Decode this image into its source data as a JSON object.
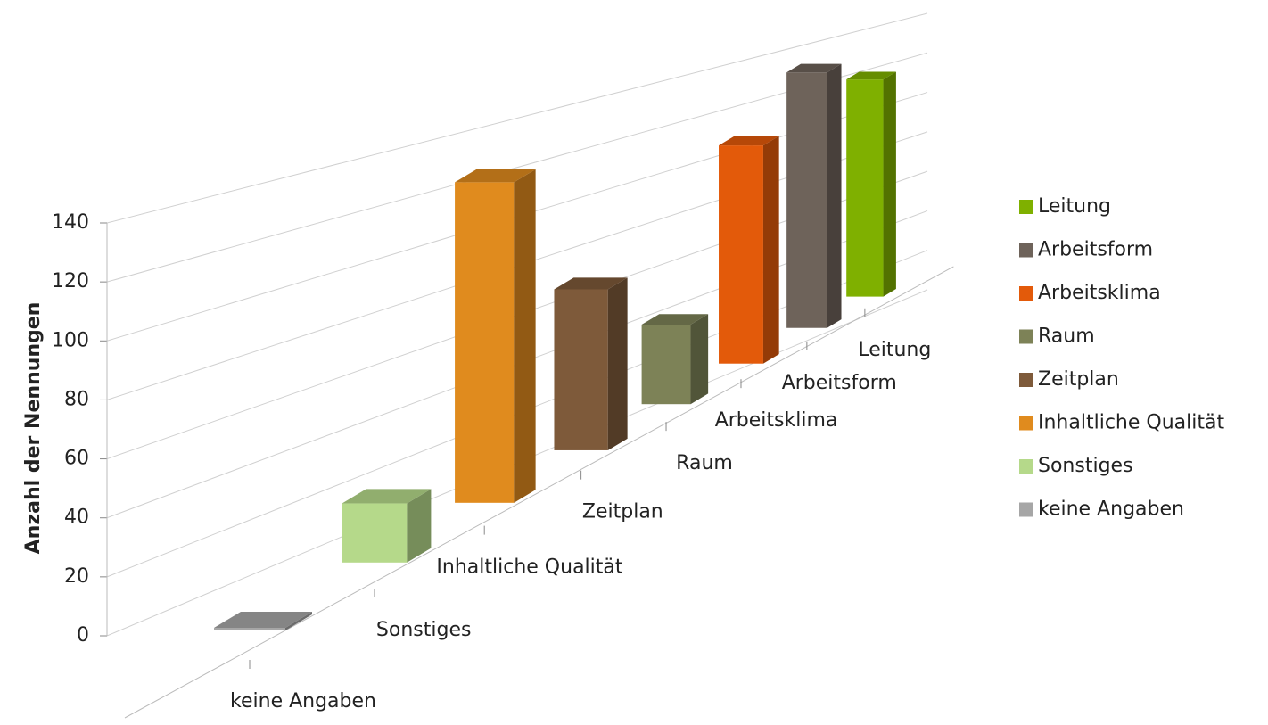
{
  "chart_data": {
    "type": "bar3d",
    "y_label": "Anzahl der Nennungen",
    "categories": [
      "keine Angaben",
      "Sonstiges",
      "Inhaltliche Qualität",
      "Zeitplan",
      "Raum",
      "Arbeitsklima",
      "Arbeitsform",
      "Leitung"
    ],
    "values": [
      1,
      23,
      130,
      68,
      35,
      100,
      122,
      108
    ],
    "colors": [
      "#a6a6a6",
      "#b5d98a",
      "#e08b1e",
      "#7e5a3a",
      "#7d8257",
      "#e35a0a",
      "#6e635a",
      "#7fb000"
    ],
    "ylim": [
      0,
      140
    ],
    "yticks": [
      0,
      20,
      40,
      60,
      80,
      100,
      120,
      140
    ],
    "grid": true,
    "legend": "right"
  }
}
